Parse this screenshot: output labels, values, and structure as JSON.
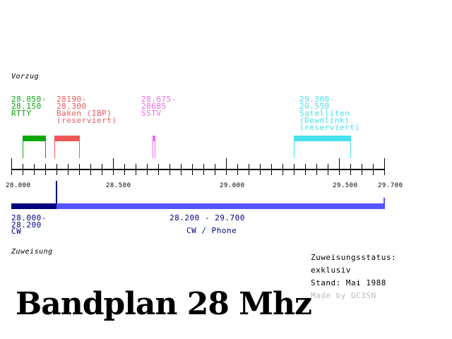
{
  "colors": {
    "rtty": "#08a808",
    "baken": "#f05858",
    "sstv": "#ee66ee",
    "satelliten": "#44e0ee",
    "cw": "#000080",
    "cw_phone": "#5555ff",
    "axis": "#000000",
    "signature": "#bbbbbb"
  },
  "section_labels": {
    "vorzug": "Vorzug",
    "zuweisung": "Zuweisung"
  },
  "bands": {
    "rtty": {
      "range_start": "28.050-",
      "range_end": "28.150",
      "mode": "RTTY"
    },
    "baken": {
      "range_start": "28190-",
      "range_end": "28.300",
      "mode": "Baken (IBP)",
      "note": "(reserviert)"
    },
    "sstv": {
      "range_start": "28.675-",
      "range_end": "28685",
      "mode": "SSTV"
    },
    "satelliten": {
      "range_start": "29.300-",
      "range_end": "29.550",
      "mode": "Satelliten",
      "note1": "(Downlink)",
      "note2": "(reserviert)"
    }
  },
  "axis_labels": {
    "l1": "28.000",
    "l2": "28.500",
    "l3": "29.000",
    "l4": "29.500",
    "l5": "29.700"
  },
  "allocation": {
    "cw": {
      "range_start": "28.000-",
      "range_end": "28.200",
      "mode": "CW"
    },
    "cw_phone": {
      "range": "28.200 - 29.700",
      "mode": "CW / Phone"
    }
  },
  "status": {
    "title": "Zuweisungsstatus:",
    "value": "exklusiv",
    "stand": "Stand: Mai 1988",
    "signature": "Made by DC3SN"
  },
  "title": "Bandplan 28 Mhz"
}
